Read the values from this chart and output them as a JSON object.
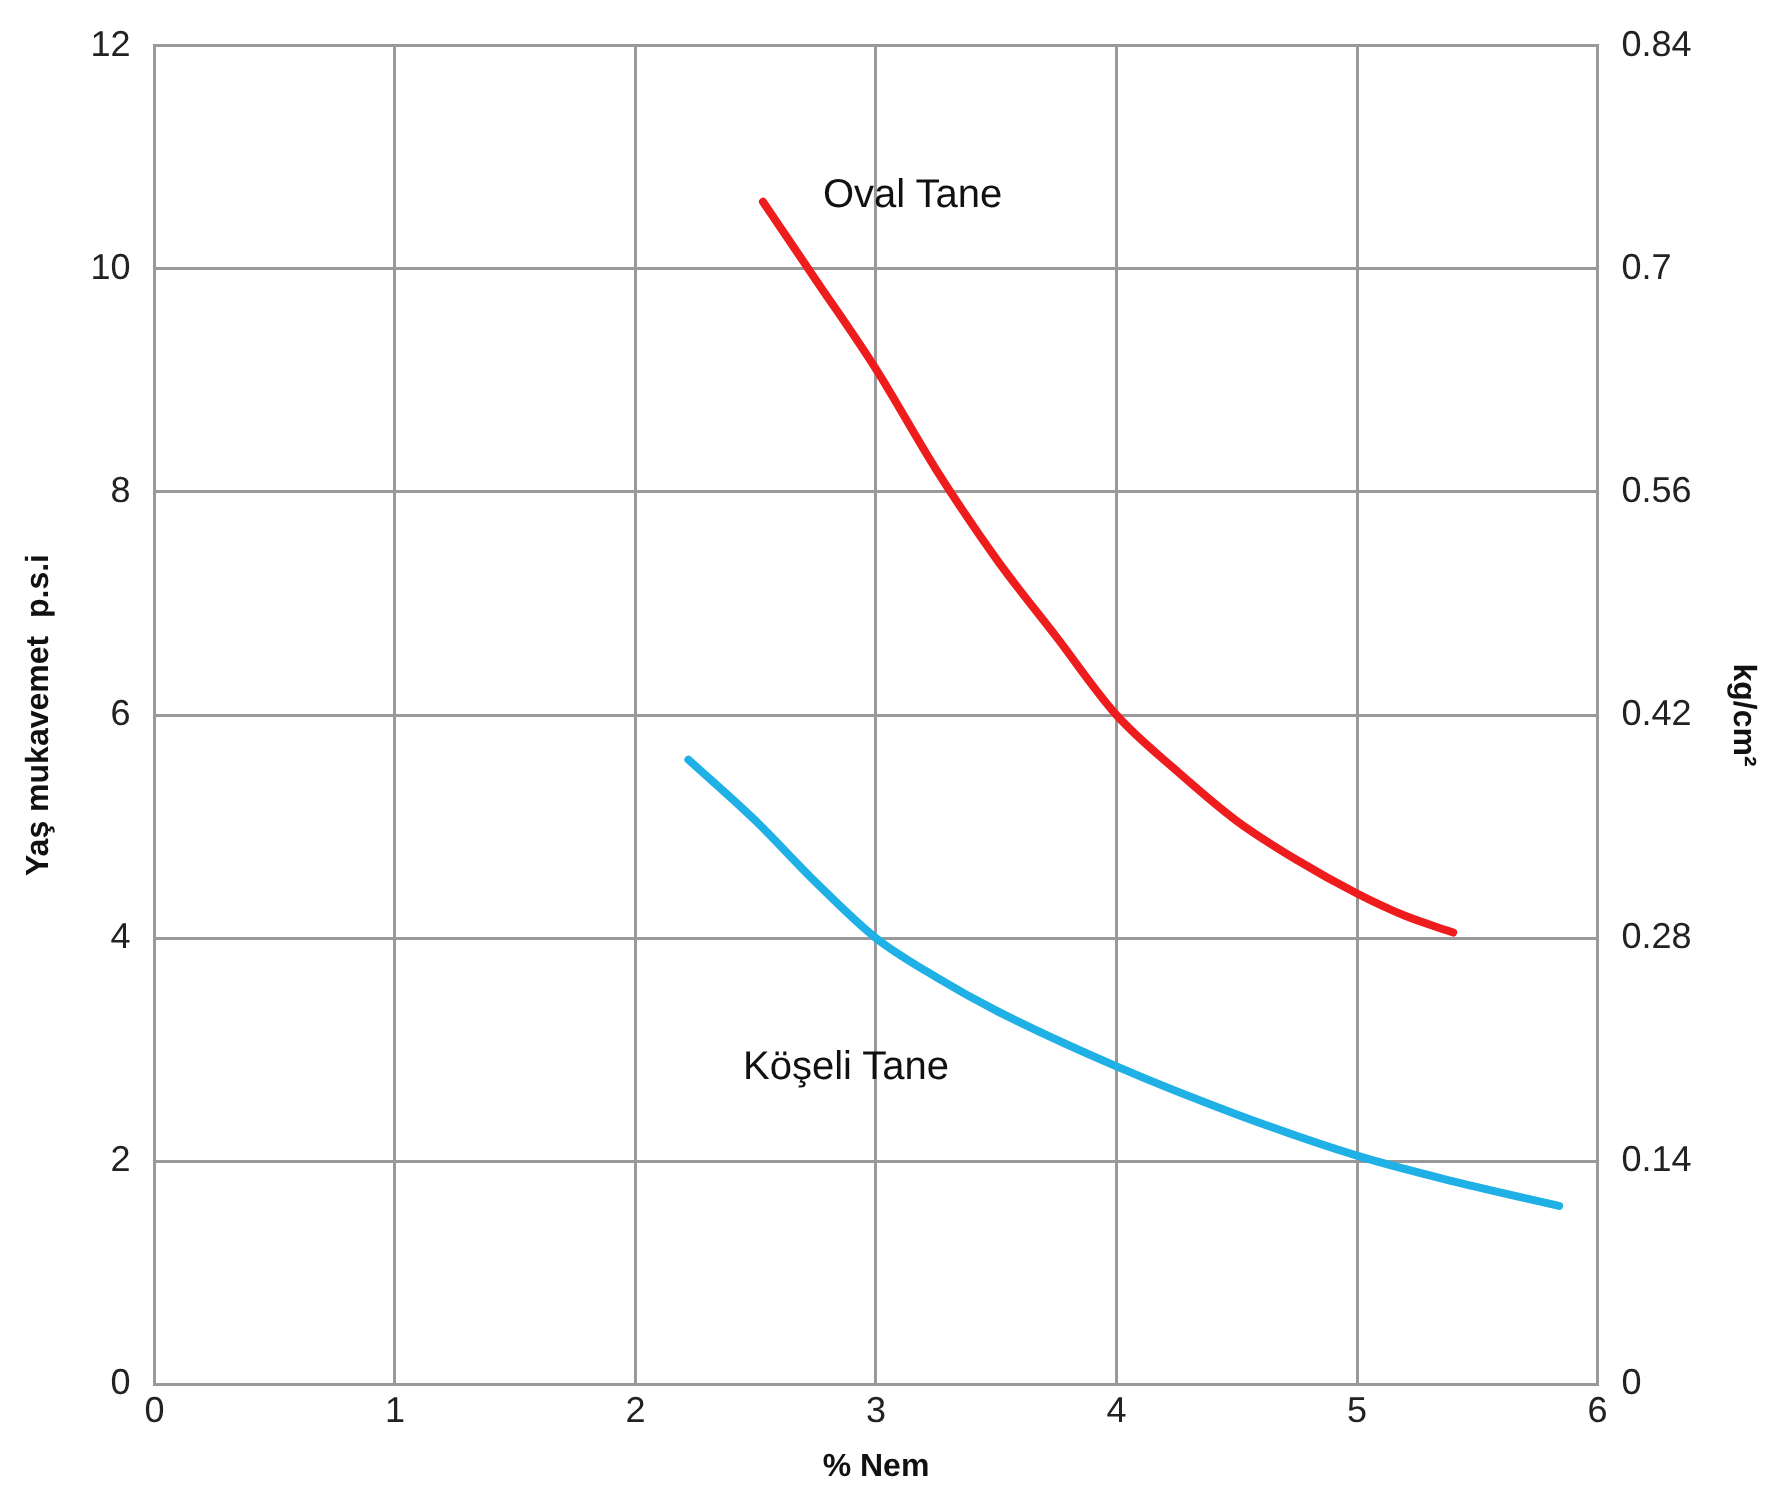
{
  "chart_data": {
    "type": "line",
    "xlabel": "% Nem",
    "ylabel": "Yaş mukavemet  p.s.i",
    "y2label": "kg/cm²",
    "xlim": [
      0,
      6
    ],
    "xticks": [
      0,
      1,
      2,
      3,
      4,
      5,
      6
    ],
    "ylim": [
      0,
      12
    ],
    "yticks": [
      0,
      2,
      4,
      6,
      8,
      10,
      12
    ],
    "y2lim": [
      0,
      0.84
    ],
    "y2ticks": [
      0,
      0.14,
      0.28,
      0.42,
      0.56,
      0.7,
      0.84
    ],
    "grid": true,
    "legend": false,
    "marker": "none",
    "line_style": "solid",
    "series": [
      {
        "name": "Oval Tane",
        "color": "#ee1c1c",
        "x": [
          2.53,
          2.75,
          3.0,
          3.25,
          3.5,
          3.75,
          4.0,
          4.25,
          4.5,
          4.75,
          5.0,
          5.2,
          5.4
        ],
        "values": [
          10.6,
          9.9,
          9.1,
          8.2,
          7.4,
          6.7,
          6.0,
          5.5,
          5.05,
          4.7,
          4.4,
          4.2,
          4.05
        ]
      },
      {
        "name": "Köşeli Tane",
        "color": "#1fb0e6",
        "x": [
          2.22,
          2.5,
          2.75,
          3.0,
          3.25,
          3.5,
          4.0,
          4.5,
          5.0,
          5.4,
          5.84
        ],
        "values": [
          5.6,
          5.05,
          4.5,
          4.0,
          3.65,
          3.35,
          2.85,
          2.42,
          2.05,
          1.82,
          1.6
        ]
      }
    ]
  }
}
